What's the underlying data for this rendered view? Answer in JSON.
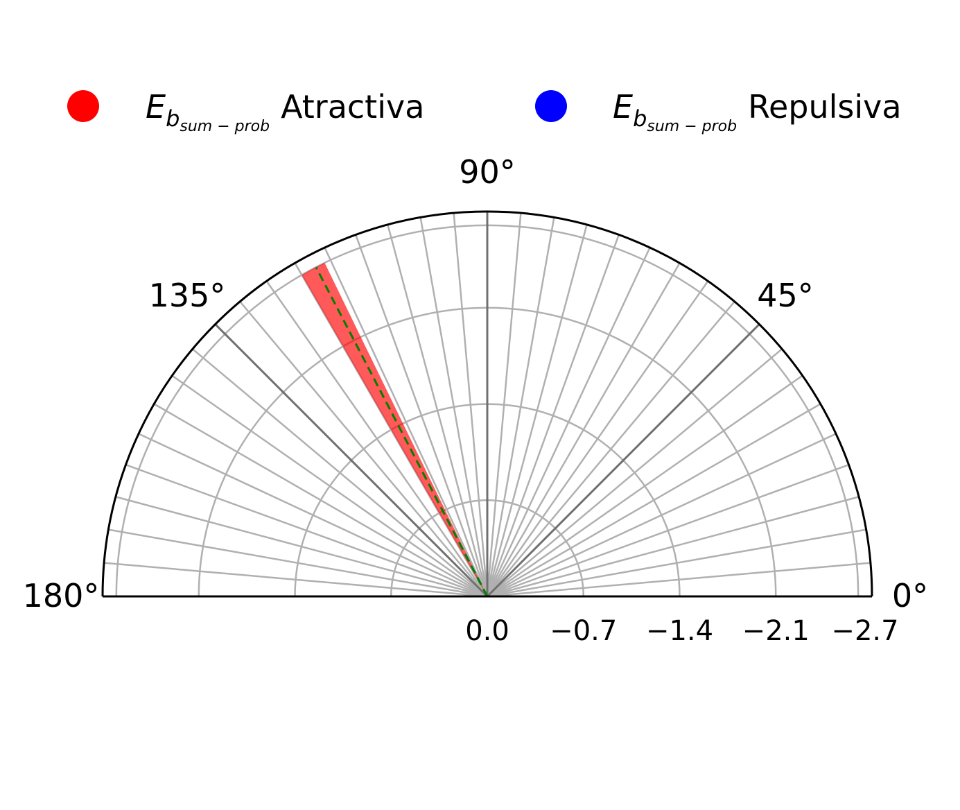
{
  "chart_data": {
    "type": "polar-bar",
    "theta_range_deg": [
      0,
      180
    ],
    "angle_tick_labels": [
      "0°",
      "45°",
      "90°",
      "135°",
      "180°"
    ],
    "angle_major_ticks_deg": [
      0,
      45,
      90,
      135,
      180
    ],
    "angle_minor_step_deg": 5,
    "radial_tick_labels": [
      "0.0",
      "−0.7",
      "−1.4",
      "−2.1",
      "−2.7"
    ],
    "radial_tick_values": [
      0.0,
      -0.7,
      -1.4,
      -2.1,
      -2.7
    ],
    "radial_limit": -2.8,
    "grid": true,
    "legend": {
      "placement": "top",
      "entries": [
        {
          "symbol": "E",
          "subscript": "b",
          "subsubscript": "sum − prob",
          "suffix": "Atractiva",
          "color": "#ff0000"
        },
        {
          "symbol": "E",
          "subscript": "b",
          "subsubscript": "sum − prob",
          "suffix": "Repulsiva",
          "color": "#0000ff"
        }
      ]
    },
    "series": [
      {
        "name": "Atractiva",
        "color": "#ff0000",
        "alpha": 0.65,
        "bars": [
          {
            "theta_center_deg": 118,
            "width_deg": 4,
            "r": -2.7
          }
        ]
      }
    ],
    "reference_line": {
      "theta_deg": 117.5,
      "r": -2.7,
      "color": "#008000",
      "style": "dashed"
    }
  }
}
